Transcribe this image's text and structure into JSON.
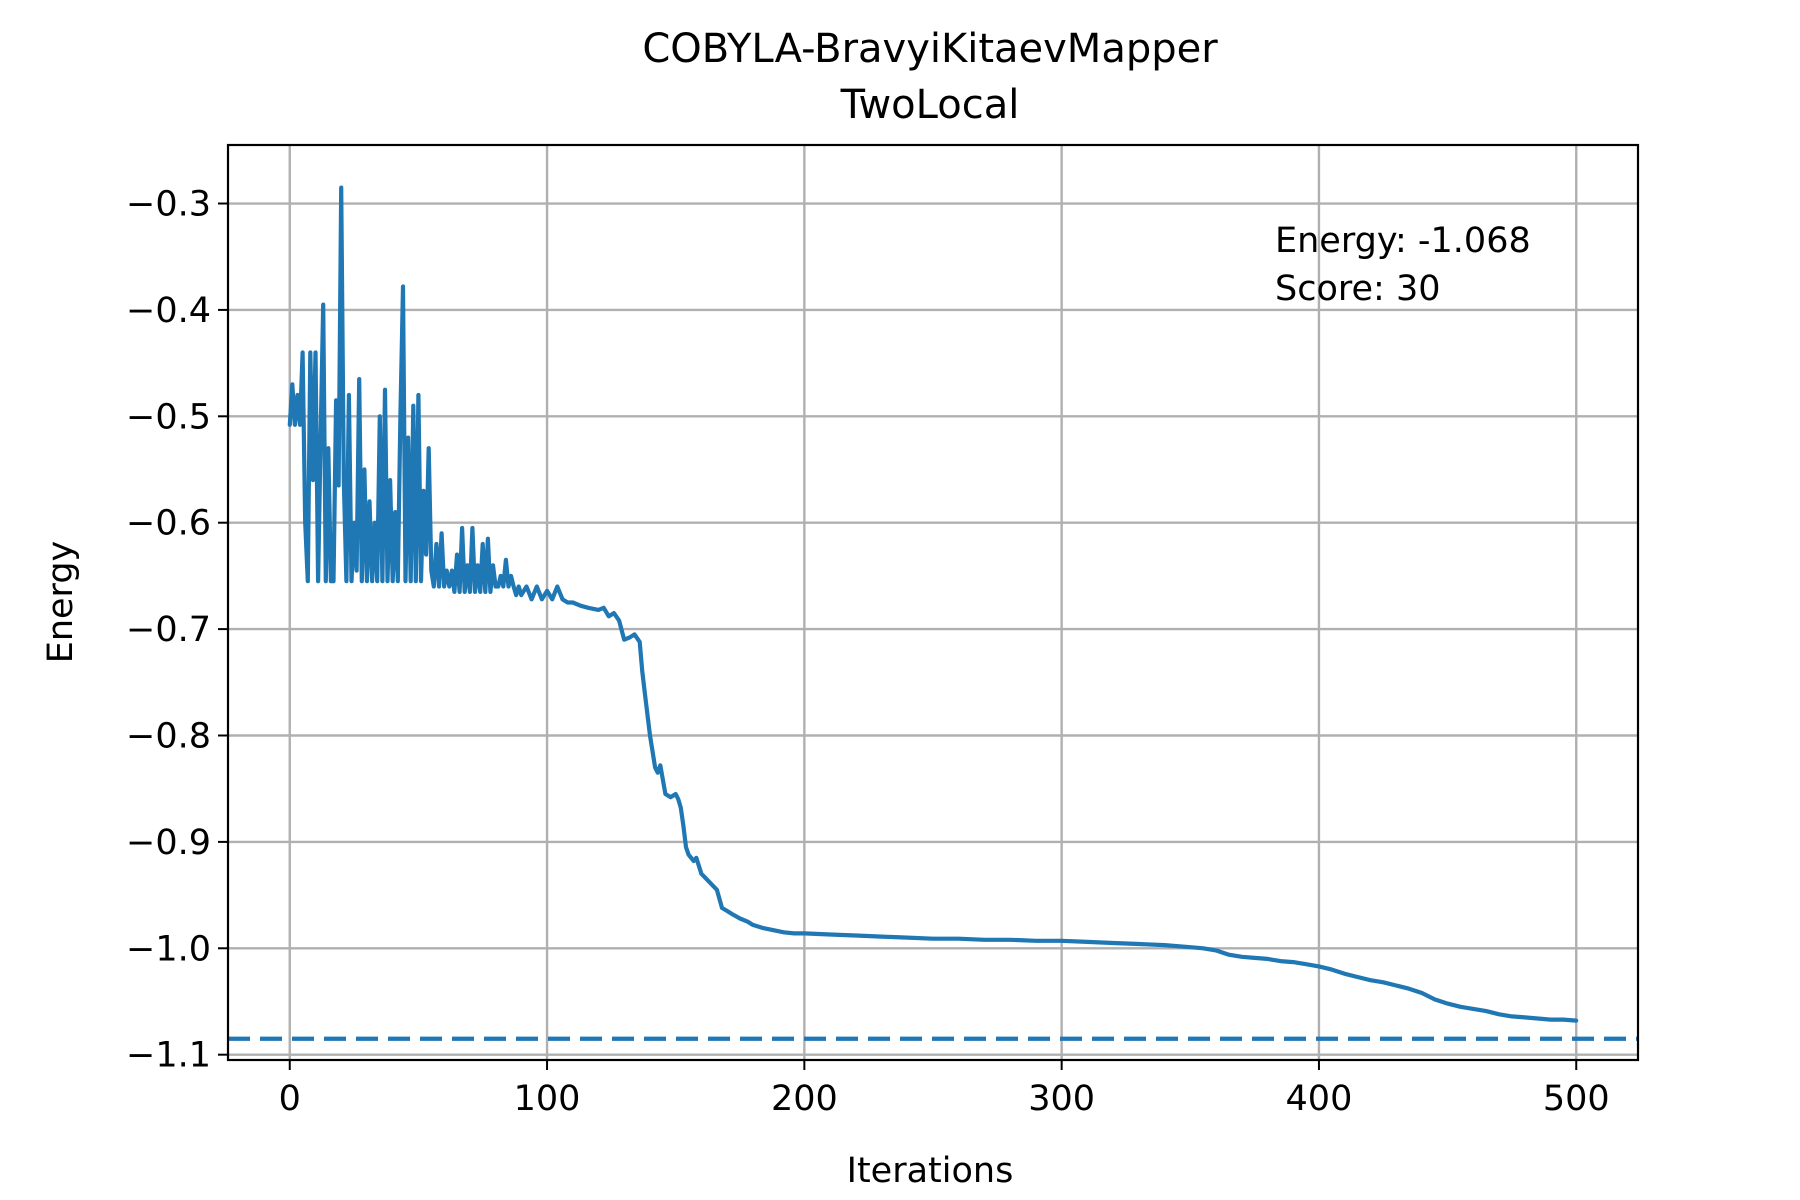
{
  "chart_data": {
    "type": "line",
    "title_line1": "COBYLA-BravyiKitaevMapper",
    "title_line2": "TwoLocal",
    "xlabel": "Iterations",
    "ylabel": "Energy",
    "xlim": [
      -24,
      524
    ],
    "ylim": [
      -1.105,
      -0.245
    ],
    "x_ticks": [
      0,
      100,
      200,
      300,
      400,
      500
    ],
    "x_tick_labels": [
      "0",
      "100",
      "200",
      "300",
      "400",
      "500"
    ],
    "y_ticks": [
      -0.3,
      -0.4,
      -0.5,
      -0.6,
      -0.7,
      -0.8,
      -0.9,
      -1.0,
      -1.1
    ],
    "y_tick_labels": [
      "−0.3",
      "−0.4",
      "−0.5",
      "−0.6",
      "−0.7",
      "−0.8",
      "−0.9",
      "−1.0",
      "−1.1"
    ],
    "grid": true,
    "annotation_lines": [
      "Energy: -1.068",
      "Score: 30"
    ],
    "reference_line": {
      "y": -1.085,
      "style": "dashed"
    },
    "line_color": "#1f77b4",
    "series": [
      {
        "points": [
          [
            0,
            -0.508
          ],
          [
            1,
            -0.47
          ],
          [
            2,
            -0.508
          ],
          [
            3,
            -0.48
          ],
          [
            4,
            -0.508
          ],
          [
            5,
            -0.44
          ],
          [
            6,
            -0.6
          ],
          [
            7,
            -0.655
          ],
          [
            8,
            -0.44
          ],
          [
            9,
            -0.56
          ],
          [
            10,
            -0.44
          ],
          [
            11,
            -0.655
          ],
          [
            12,
            -0.52
          ],
          [
            13,
            -0.395
          ],
          [
            14,
            -0.655
          ],
          [
            15,
            -0.53
          ],
          [
            16,
            -0.655
          ],
          [
            17,
            -0.655
          ],
          [
            18,
            -0.485
          ],
          [
            19,
            -0.565
          ],
          [
            20,
            -0.285
          ],
          [
            21,
            -0.56
          ],
          [
            22,
            -0.655
          ],
          [
            23,
            -0.48
          ],
          [
            24,
            -0.655
          ],
          [
            25,
            -0.6
          ],
          [
            26,
            -0.645
          ],
          [
            27,
            -0.465
          ],
          [
            28,
            -0.655
          ],
          [
            29,
            -0.55
          ],
          [
            30,
            -0.655
          ],
          [
            31,
            -0.58
          ],
          [
            32,
            -0.655
          ],
          [
            33,
            -0.6
          ],
          [
            34,
            -0.655
          ],
          [
            35,
            -0.5
          ],
          [
            36,
            -0.655
          ],
          [
            37,
            -0.475
          ],
          [
            38,
            -0.655
          ],
          [
            39,
            -0.56
          ],
          [
            40,
            -0.655
          ],
          [
            41,
            -0.59
          ],
          [
            42,
            -0.655
          ],
          [
            43,
            -0.5
          ],
          [
            44,
            -0.378
          ],
          [
            45,
            -0.655
          ],
          [
            46,
            -0.52
          ],
          [
            47,
            -0.655
          ],
          [
            48,
            -0.49
          ],
          [
            49,
            -0.655
          ],
          [
            50,
            -0.48
          ],
          [
            51,
            -0.655
          ],
          [
            52,
            -0.57
          ],
          [
            53,
            -0.63
          ],
          [
            54,
            -0.53
          ],
          [
            55,
            -0.645
          ],
          [
            56,
            -0.66
          ],
          [
            57,
            -0.62
          ],
          [
            58,
            -0.66
          ],
          [
            59,
            -0.61
          ],
          [
            60,
            -0.66
          ],
          [
            61,
            -0.645
          ],
          [
            62,
            -0.66
          ],
          [
            63,
            -0.645
          ],
          [
            64,
            -0.665
          ],
          [
            65,
            -0.63
          ],
          [
            66,
            -0.665
          ],
          [
            67,
            -0.605
          ],
          [
            68,
            -0.665
          ],
          [
            69,
            -0.64
          ],
          [
            70,
            -0.665
          ],
          [
            71,
            -0.605
          ],
          [
            72,
            -0.665
          ],
          [
            73,
            -0.64
          ],
          [
            74,
            -0.665
          ],
          [
            75,
            -0.62
          ],
          [
            76,
            -0.665
          ],
          [
            77,
            -0.615
          ],
          [
            78,
            -0.665
          ],
          [
            79,
            -0.64
          ],
          [
            80,
            -0.66
          ],
          [
            81,
            -0.66
          ],
          [
            82,
            -0.65
          ],
          [
            83,
            -0.66
          ],
          [
            84,
            -0.635
          ],
          [
            85,
            -0.66
          ],
          [
            86,
            -0.65
          ],
          [
            87,
            -0.66
          ],
          [
            88,
            -0.668
          ],
          [
            89,
            -0.66
          ],
          [
            90,
            -0.668
          ],
          [
            92,
            -0.66
          ],
          [
            94,
            -0.672
          ],
          [
            96,
            -0.66
          ],
          [
            98,
            -0.672
          ],
          [
            100,
            -0.664
          ],
          [
            102,
            -0.672
          ],
          [
            104,
            -0.66
          ],
          [
            106,
            -0.672
          ],
          [
            108,
            -0.675
          ],
          [
            110,
            -0.675
          ],
          [
            113,
            -0.678
          ],
          [
            116,
            -0.68
          ],
          [
            120,
            -0.682
          ],
          [
            122,
            -0.68
          ],
          [
            124,
            -0.688
          ],
          [
            126,
            -0.685
          ],
          [
            128,
            -0.692
          ],
          [
            130,
            -0.71
          ],
          [
            132,
            -0.708
          ],
          [
            134,
            -0.705
          ],
          [
            136,
            -0.712
          ],
          [
            137,
            -0.74
          ],
          [
            138,
            -0.76
          ],
          [
            140,
            -0.8
          ],
          [
            142,
            -0.83
          ],
          [
            143,
            -0.835
          ],
          [
            144,
            -0.828
          ],
          [
            146,
            -0.855
          ],
          [
            148,
            -0.858
          ],
          [
            150,
            -0.855
          ],
          [
            151,
            -0.86
          ],
          [
            152,
            -0.868
          ],
          [
            153,
            -0.885
          ],
          [
            154,
            -0.905
          ],
          [
            155,
            -0.912
          ],
          [
            157,
            -0.918
          ],
          [
            158,
            -0.915
          ],
          [
            160,
            -0.93
          ],
          [
            162,
            -0.935
          ],
          [
            164,
            -0.94
          ],
          [
            166,
            -0.945
          ],
          [
            168,
            -0.962
          ],
          [
            170,
            -0.965
          ],
          [
            172,
            -0.968
          ],
          [
            175,
            -0.972
          ],
          [
            178,
            -0.975
          ],
          [
            180,
            -0.978
          ],
          [
            184,
            -0.981
          ],
          [
            188,
            -0.983
          ],
          [
            192,
            -0.985
          ],
          [
            196,
            -0.986
          ],
          [
            200,
            -0.986
          ],
          [
            210,
            -0.987
          ],
          [
            220,
            -0.988
          ],
          [
            230,
            -0.989
          ],
          [
            240,
            -0.99
          ],
          [
            250,
            -0.991
          ],
          [
            260,
            -0.991
          ],
          [
            270,
            -0.992
          ],
          [
            280,
            -0.992
          ],
          [
            290,
            -0.993
          ],
          [
            300,
            -0.993
          ],
          [
            310,
            -0.994
          ],
          [
            320,
            -0.995
          ],
          [
            330,
            -0.996
          ],
          [
            340,
            -0.997
          ],
          [
            350,
            -0.999
          ],
          [
            355,
            -1.0
          ],
          [
            360,
            -1.002
          ],
          [
            365,
            -1.006
          ],
          [
            370,
            -1.008
          ],
          [
            375,
            -1.009
          ],
          [
            380,
            -1.01
          ],
          [
            385,
            -1.012
          ],
          [
            390,
            -1.013
          ],
          [
            395,
            -1.015
          ],
          [
            400,
            -1.017
          ],
          [
            405,
            -1.02
          ],
          [
            410,
            -1.024
          ],
          [
            415,
            -1.027
          ],
          [
            420,
            -1.03
          ],
          [
            425,
            -1.032
          ],
          [
            430,
            -1.035
          ],
          [
            435,
            -1.038
          ],
          [
            440,
            -1.042
          ],
          [
            445,
            -1.048
          ],
          [
            450,
            -1.052
          ],
          [
            455,
            -1.055
          ],
          [
            460,
            -1.057
          ],
          [
            465,
            -1.059
          ],
          [
            470,
            -1.062
          ],
          [
            475,
            -1.064
          ],
          [
            480,
            -1.065
          ],
          [
            485,
            -1.066
          ],
          [
            490,
            -1.067
          ],
          [
            495,
            -1.067
          ],
          [
            500,
            -1.068
          ]
        ]
      }
    ]
  }
}
